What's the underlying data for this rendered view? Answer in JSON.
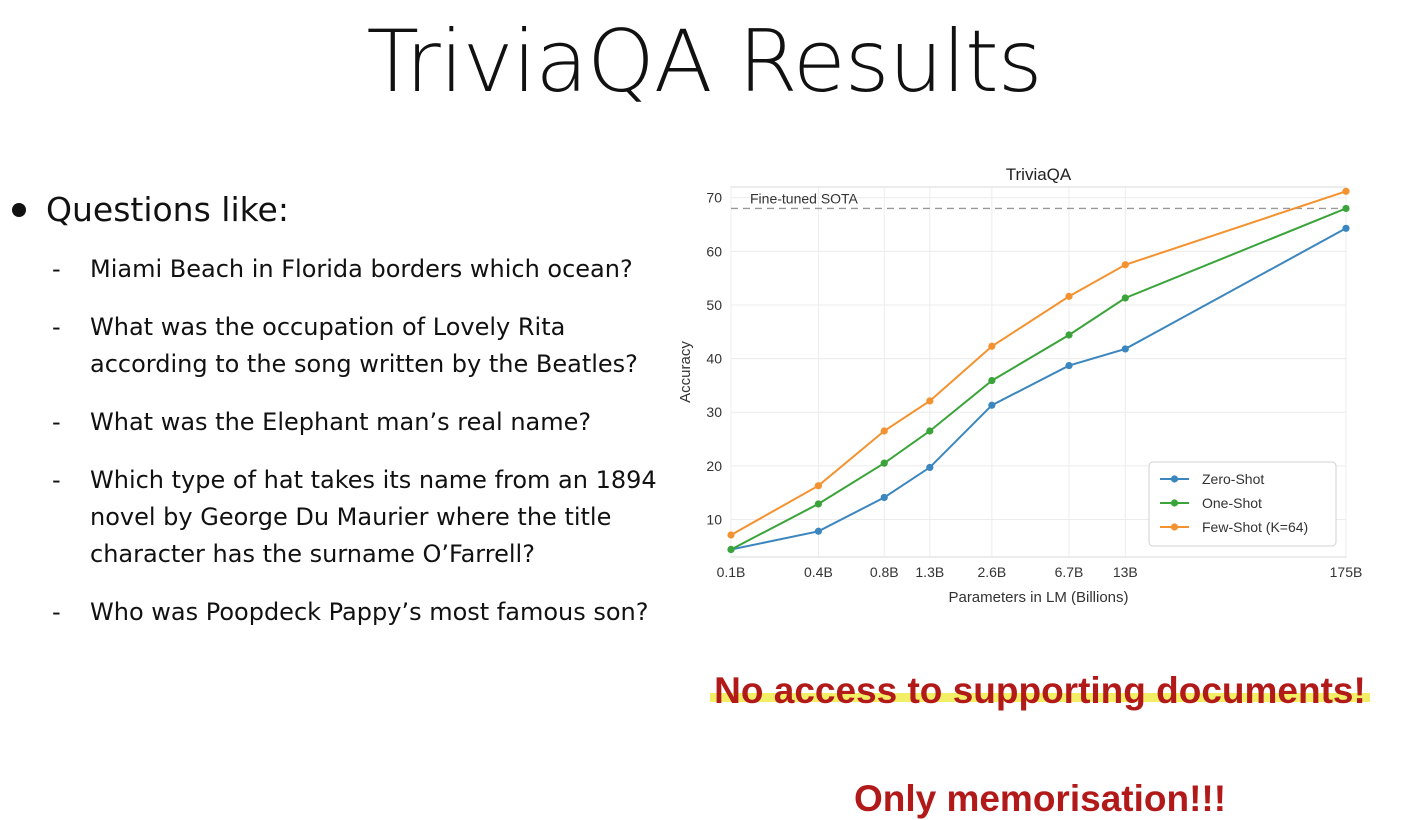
{
  "slide": {
    "title": "TriviaQA Results",
    "bullet": "Questions like:",
    "questions": [
      "Miami Beach in Florida borders which ocean?",
      "What was the occupation of Lovely Rita according to the song written by the Beatles?",
      "What was the Elephant man’s real name?",
      "Which type of hat takes its name from an 1894 novel by George Du Maurier where the title character has the surname O’Farrell?",
      "Who was Poopdeck Pappy’s most famous son?"
    ],
    "callout_1": "No access to supporting documents!",
    "callout_2": "Only memorisation!!!",
    "dash": "-"
  },
  "chart_data": {
    "type": "line",
    "title": "TriviaQA",
    "xlabel": "Parameters in LM (Billions)",
    "ylabel": "Accuracy",
    "x_scale": "log",
    "categories": [
      "0.1B",
      "0.4B",
      "0.8B",
      "1.3B",
      "2.6B",
      "6.7B",
      "13B",
      "175B"
    ],
    "x": [
      0.125,
      0.35,
      0.76,
      1.3,
      2.7,
      6.7,
      13,
      175
    ],
    "ylim": [
      3,
      72
    ],
    "yticks": [
      10,
      20,
      30,
      40,
      50,
      60,
      70
    ],
    "grid": true,
    "legend_position": "bottom-right",
    "reference_line": {
      "label": "Fine-tuned SOTA",
      "value": 68.0
    },
    "series": [
      {
        "name": "Zero-Shot",
        "color": "#3b86be",
        "values": [
          4.4,
          7.8,
          14.1,
          19.7,
          31.3,
          38.7,
          41.8,
          64.3
        ]
      },
      {
        "name": "One-Shot",
        "color": "#3aa43a",
        "values": [
          4.4,
          12.9,
          20.5,
          26.5,
          35.9,
          44.4,
          51.3,
          68.0
        ]
      },
      {
        "name": "Few-Shot (K=64)",
        "color": "#f3922f",
        "values": [
          7.1,
          16.3,
          26.5,
          32.1,
          42.3,
          51.6,
          57.5,
          71.2
        ]
      }
    ]
  }
}
